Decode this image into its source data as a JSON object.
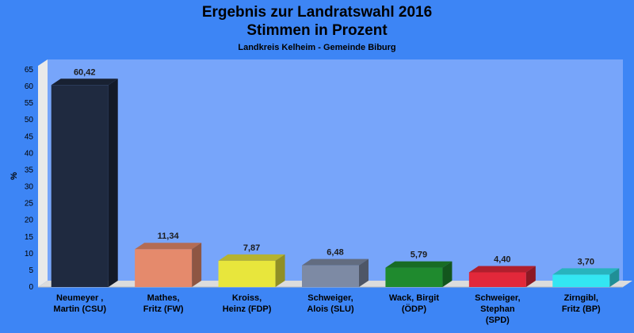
{
  "chart_data": {
    "type": "bar",
    "title_line1": "Ergebnis zur Landratswahl 2016",
    "title_line2": "Stimmen in Prozent",
    "subtitle": "Landkreis Kelheim - Gemeinde Biburg",
    "ylabel": "%",
    "ylim": [
      0,
      65
    ],
    "yticks": [
      0,
      5,
      10,
      15,
      20,
      25,
      30,
      35,
      40,
      45,
      50,
      55,
      60,
      65
    ],
    "grid": false,
    "categories": [
      [
        "Neumeyer ,",
        "Martin (CSU)"
      ],
      [
        "Mathes,",
        "Fritz (FW)"
      ],
      [
        "Kroiss,",
        "Heinz (FDP)"
      ],
      [
        "Schweiger,",
        "Alois (SLU)"
      ],
      [
        "Wack, Birgit",
        "(ÖDP)"
      ],
      [
        "Schweiger,",
        "Stephan",
        "(SPD)"
      ],
      [
        "Zirngibl,",
        "Fritz (BP)"
      ]
    ],
    "values": [
      60.42,
      11.34,
      7.87,
      6.48,
      5.79,
      4.4,
      3.7
    ],
    "value_labels": [
      "60,42",
      "11,34",
      "7,87",
      "6,48",
      "5,79",
      "4,40",
      "3,70"
    ],
    "colors": [
      "#1f2a40",
      "#e58a6c",
      "#e8e63c",
      "#7d8aa4",
      "#1f8a2e",
      "#e2283a",
      "#33e6f2"
    ],
    "plot_background": "#77a5fa",
    "page_background": "#3d85f5"
  }
}
